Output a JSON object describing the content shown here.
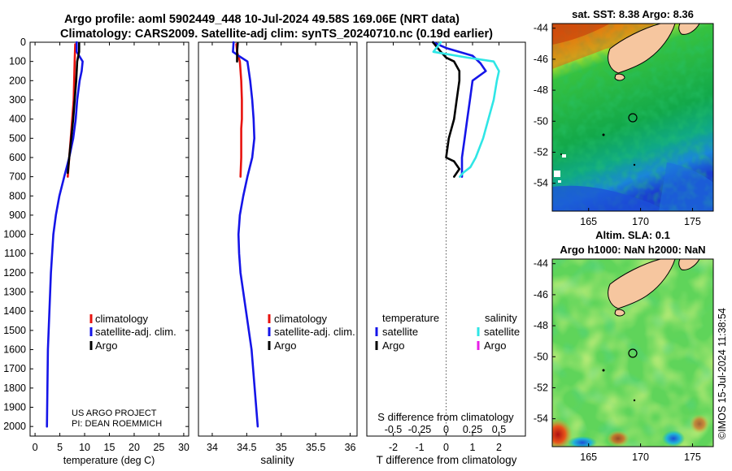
{
  "title": {
    "line1": "Argo profile: aoml 5902449_448 10-Jul-2024 49.58S 169.06E (NRT data)",
    "line2": "Climatology: CARS2009. Satellite-adj clim: synTS_20240710.nc (0.19d earlier)"
  },
  "timestamp": "©IMOS 15-Jul-2024 11:38:54",
  "credit": {
    "line1": "US ARGO PROJECT",
    "line2": "PI: DEAN ROEMMICH"
  },
  "colors": {
    "climatology": "#e8130f",
    "satellite": "#1515e8",
    "argo": "#000000",
    "sat_salinity": "#2fe6e6",
    "argo_salinity": "#e81ee8",
    "land": "#f6c69f"
  },
  "chart_data": [
    {
      "type": "line",
      "id": "temperature",
      "xlabel": "temperature (deg C)",
      "ylabel": "",
      "xlim": [
        -1,
        31
      ],
      "ylim": [
        0,
        2050
      ],
      "xticks": [
        "0",
        "5",
        "10",
        "15",
        "20",
        "25",
        "30"
      ],
      "yticks": [
        "0",
        "100",
        "200",
        "300",
        "400",
        "500",
        "600",
        "700",
        "800",
        "900",
        "1000",
        "1100",
        "1200",
        "1300",
        "1400",
        "1500",
        "1600",
        "1700",
        "1800",
        "1900",
        "2000"
      ],
      "legend": [
        "climatology",
        "satellite-adj. clim.",
        "Argo"
      ],
      "series": [
        {
          "name": "climatology",
          "color": "#e8130f",
          "x": [
            8.1,
            8.0,
            7.9,
            7.8,
            7.5,
            7.2,
            6.6
          ],
          "y": [
            10,
            100,
            200,
            300,
            400,
            500,
            700
          ]
        },
        {
          "name": "satellite-adj. clim.",
          "color": "#1515e8",
          "x": [
            8.4,
            8.4,
            9.6,
            9.4,
            9.0,
            8.5,
            8.2,
            7.7,
            6.9,
            5.9,
            4.9,
            4.2,
            3.7,
            3.2,
            2.6,
            2.4
          ],
          "y": [
            0,
            50,
            100,
            150,
            200,
            300,
            400,
            500,
            600,
            700,
            800,
            900,
            1000,
            1200,
            1600,
            2000
          ]
        },
        {
          "name": "Argo",
          "color": "#000000",
          "x": [
            8.9,
            8.9,
            8.5,
            8.3,
            8.0,
            7.7,
            7.3,
            6.9,
            6.6
          ],
          "y": [
            5,
            50,
            100,
            200,
            300,
            400,
            500,
            600,
            680
          ]
        }
      ]
    },
    {
      "type": "line",
      "id": "salinity",
      "xlabel": "salinity",
      "xlim": [
        33.8,
        36.1
      ],
      "ylim": [
        0,
        2050
      ],
      "xticks": [
        "34",
        "34.5",
        "35",
        "35.5",
        "36"
      ],
      "legend": [
        "climatology",
        "satellite-adj. clim.",
        "Argo"
      ],
      "series": [
        {
          "name": "climatology",
          "color": "#e8130f",
          "x": [
            34.35,
            34.36,
            34.4,
            34.42,
            34.43,
            34.43,
            34.42,
            34.42,
            34.41
          ],
          "y": [
            10,
            50,
            100,
            200,
            300,
            400,
            450,
            600,
            700
          ]
        },
        {
          "name": "satellite-adj. clim.",
          "color": "#1515e8",
          "x": [
            34.31,
            34.3,
            34.38,
            34.51,
            34.55,
            34.58,
            34.6,
            34.61,
            34.58,
            34.51,
            34.45,
            34.4,
            34.38,
            34.39,
            34.41,
            34.49,
            34.57,
            34.66
          ],
          "y": [
            0,
            50,
            70,
            100,
            200,
            300,
            400,
            500,
            600,
            700,
            800,
            900,
            1000,
            1100,
            1200,
            1400,
            1600,
            2000
          ]
        },
        {
          "name": "Argo",
          "color": "#000000",
          "x": [
            34.37,
            34.36,
            34.36
          ],
          "y": [
            5,
            50,
            100
          ]
        }
      ]
    },
    {
      "type": "line",
      "id": "differences",
      "xlabel": "T difference from climatology",
      "x2label": "S difference from climatology",
      "xlim": [
        -3,
        3
      ],
      "x2lim": [
        -0.75,
        0.75
      ],
      "ylim": [
        0,
        2050
      ],
      "xticks": [
        "-2",
        "-1",
        "0",
        "1",
        "2"
      ],
      "x2ticks": [
        "-0.5",
        "-0.25",
        "0",
        "0.25",
        "0.5"
      ],
      "legend_temperature_title": "temperature",
      "legend_salinity_title": "salinity",
      "legend_temperature": [
        "satellite",
        "Argo"
      ],
      "legend_salinity": [
        "satellite",
        "Argo"
      ],
      "series": [
        {
          "name": "T satellite",
          "color": "#1515e8",
          "x": [
            -0.5,
            0.0,
            1.0,
            1.3,
            1.5,
            1.0,
            0.9,
            0.8,
            0.7,
            0.6,
            0.6,
            0.6,
            0.6
          ],
          "y": [
            0,
            30,
            70,
            110,
            150,
            200,
            300,
            400,
            500,
            600,
            650,
            680,
            700
          ]
        },
        {
          "name": "T Argo",
          "color": "#000000",
          "x": [
            -0.5,
            -0.2,
            0.0,
            0.3,
            0.5,
            0.5,
            0.4,
            0.3,
            0.1,
            0.0,
            0.3,
            0.5,
            0.3
          ],
          "y": [
            0,
            50,
            80,
            100,
            150,
            200,
            300,
            400,
            500,
            600,
            620,
            660,
            700
          ]
        },
        {
          "name": "S satellite",
          "color": "#2fe6e6",
          "x": [
            -0.05,
            -0.12,
            0.2,
            0.45,
            0.5,
            0.48,
            0.45,
            0.4,
            0.35,
            0.28,
            0.23,
            0.16,
            0.13
          ],
          "y": [
            0,
            50,
            80,
            100,
            150,
            200,
            300,
            400,
            500,
            600,
            650,
            680,
            700
          ]
        },
        {
          "name": "S Argo",
          "color": "#e81ee8",
          "x": [],
          "y": []
        }
      ]
    },
    {
      "type": "heatmap",
      "id": "sst",
      "title": "sat. SST: 8.38 Argo: 8.36",
      "xlim": [
        161.5,
        177
      ],
      "ylim": [
        -55.8,
        -43.7
      ],
      "xticks": [
        "165",
        "170",
        "175"
      ],
      "yticks": [
        "-44",
        "-46",
        "-48",
        "-50",
        "-52",
        "-54"
      ],
      "marker": {
        "lon": 169.06,
        "lat": -49.58
      }
    },
    {
      "type": "heatmap",
      "id": "sla",
      "title": "Altim. SLA: 0.1",
      "subtitle": "Argo h1000: NaN h2000: NaN",
      "xlim": [
        161.5,
        177
      ],
      "ylim": [
        -55.8,
        -43.7
      ],
      "xticks": [
        "165",
        "170",
        "175"
      ],
      "yticks": [
        "-44",
        "-46",
        "-48",
        "-50",
        "-52",
        "-54"
      ],
      "marker": {
        "lon": 169.06,
        "lat": -49.58
      }
    }
  ]
}
